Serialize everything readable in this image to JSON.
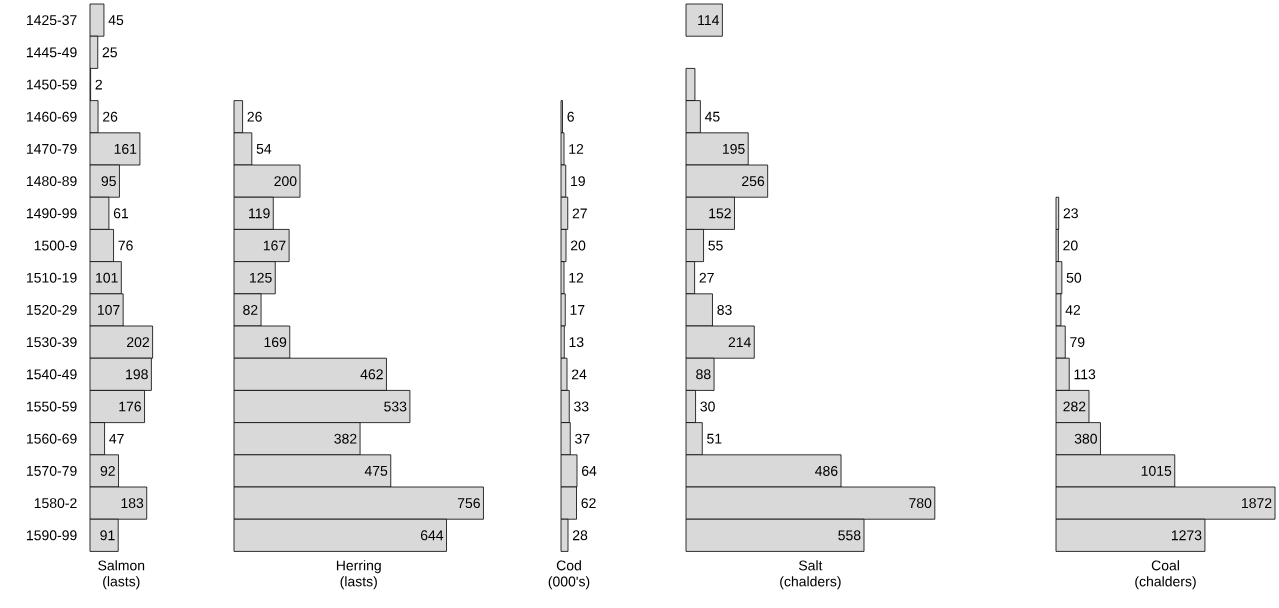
{
  "chart_data": [
    {
      "type": "bar",
      "orientation": "horizontal",
      "tick_labels": "y",
      "xlabel": "Salmon (lasts)",
      "color": "#d9d9d9",
      "categories": [
        "1425-37",
        "1445-49",
        "1450-59",
        "1460-69",
        "1470-79",
        "1480-89",
        "1490-99",
        "1500-9",
        "1510-19",
        "1520-29",
        "1530-39",
        "1540-49",
        "1550-59",
        "1560-69",
        "1570-79",
        "1580-2",
        "1590-99"
      ],
      "values": [
        45,
        25,
        2,
        26,
        161,
        95,
        61,
        76,
        101,
        107,
        202,
        198,
        176,
        47,
        92,
        183,
        91
      ],
      "value_labels": [
        "45",
        "25",
        "2",
        "26",
        "161",
        "95",
        "61",
        "76",
        "101",
        "107",
        "202",
        "198",
        "176",
        "47",
        "92",
        "183",
        "91"
      ]
    },
    {
      "type": "bar",
      "orientation": "horizontal",
      "tick_labels": false,
      "xlabel": "Herring (lasts)",
      "color": "#d9d9d9",
      "categories": [
        "1425-37",
        "1445-49",
        "1450-59",
        "1460-69",
        "1470-79",
        "1480-89",
        "1490-99",
        "1500-9",
        "1510-19",
        "1520-29",
        "1530-39",
        "1540-49",
        "1550-59",
        "1560-69",
        "1570-79",
        "1580-2",
        "1590-99"
      ],
      "values": [
        null,
        null,
        null,
        26,
        54,
        200,
        119,
        167,
        125,
        82,
        169,
        462,
        533,
        382,
        475,
        756,
        644
      ],
      "value_labels": [
        null,
        null,
        null,
        "26",
        "54",
        "200",
        "119",
        "167",
        "125",
        "82",
        "169",
        "462",
        "533",
        "382",
        "475",
        "756",
        "644"
      ]
    },
    {
      "type": "bar",
      "orientation": "horizontal",
      "tick_labels": false,
      "xlabel": "Cod (000's)",
      "color": "#d9d9d9",
      "categories": [
        "1425-37",
        "1445-49",
        "1450-59",
        "1460-69",
        "1470-79",
        "1480-89",
        "1490-99",
        "1500-9",
        "1510-19",
        "1520-29",
        "1530-39",
        "1540-49",
        "1550-59",
        "1560-69",
        "1570-79",
        "1580-2",
        "1590-99"
      ],
      "values": [
        null,
        null,
        null,
        6,
        12,
        19,
        27,
        20,
        12,
        17,
        13,
        24,
        33,
        37,
        64,
        62,
        28
      ],
      "value_labels": [
        null,
        null,
        null,
        "6",
        "12",
        "19",
        "27",
        "20",
        "12",
        "17",
        "13",
        "24",
        "33",
        "37",
        "64",
        "62",
        "28"
      ]
    },
    {
      "type": "bar",
      "orientation": "horizontal",
      "tick_labels": false,
      "xlabel": "Salt (chalders)",
      "color": "#d9d9d9",
      "categories": [
        "1425-37",
        "1445-49",
        "1450-59",
        "1460-69",
        "1470-79",
        "1480-89",
        "1490-99",
        "1500-9",
        "1510-19",
        "1520-29",
        "1530-39",
        "1540-49",
        "1550-59",
        "1560-69",
        "1570-79",
        "1580-2",
        "1590-99"
      ],
      "values": [
        114,
        null,
        28,
        45,
        195,
        256,
        152,
        55,
        27,
        83,
        214,
        88,
        30,
        51,
        486,
        780,
        558
      ],
      "value_labels": [
        "114",
        null,
        null,
        "45",
        "195",
        "256",
        "152",
        "55",
        "27",
        "83",
        "214",
        "88",
        "30",
        "51",
        "486",
        "780",
        "558"
      ]
    },
    {
      "type": "bar",
      "orientation": "horizontal",
      "tick_labels": false,
      "xlabel": "Coal (chalders)",
      "color": "#d9d9d9",
      "categories": [
        "1425-37",
        "1445-49",
        "1450-59",
        "1460-69",
        "1470-79",
        "1480-89",
        "1490-99",
        "1500-9",
        "1510-19",
        "1520-29",
        "1530-39",
        "1540-49",
        "1550-59",
        "1560-69",
        "1570-79",
        "1580-2",
        "1590-99"
      ],
      "values": [
        null,
        null,
        null,
        null,
        null,
        null,
        23,
        20,
        50,
        42,
        79,
        113,
        282,
        380,
        1015,
        1872,
        1273
      ],
      "value_labels": [
        null,
        null,
        null,
        null,
        null,
        null,
        "23",
        "20",
        "50",
        "42",
        "79",
        "113",
        "282",
        "380",
        "1015",
        "1872",
        "1273"
      ]
    }
  ]
}
